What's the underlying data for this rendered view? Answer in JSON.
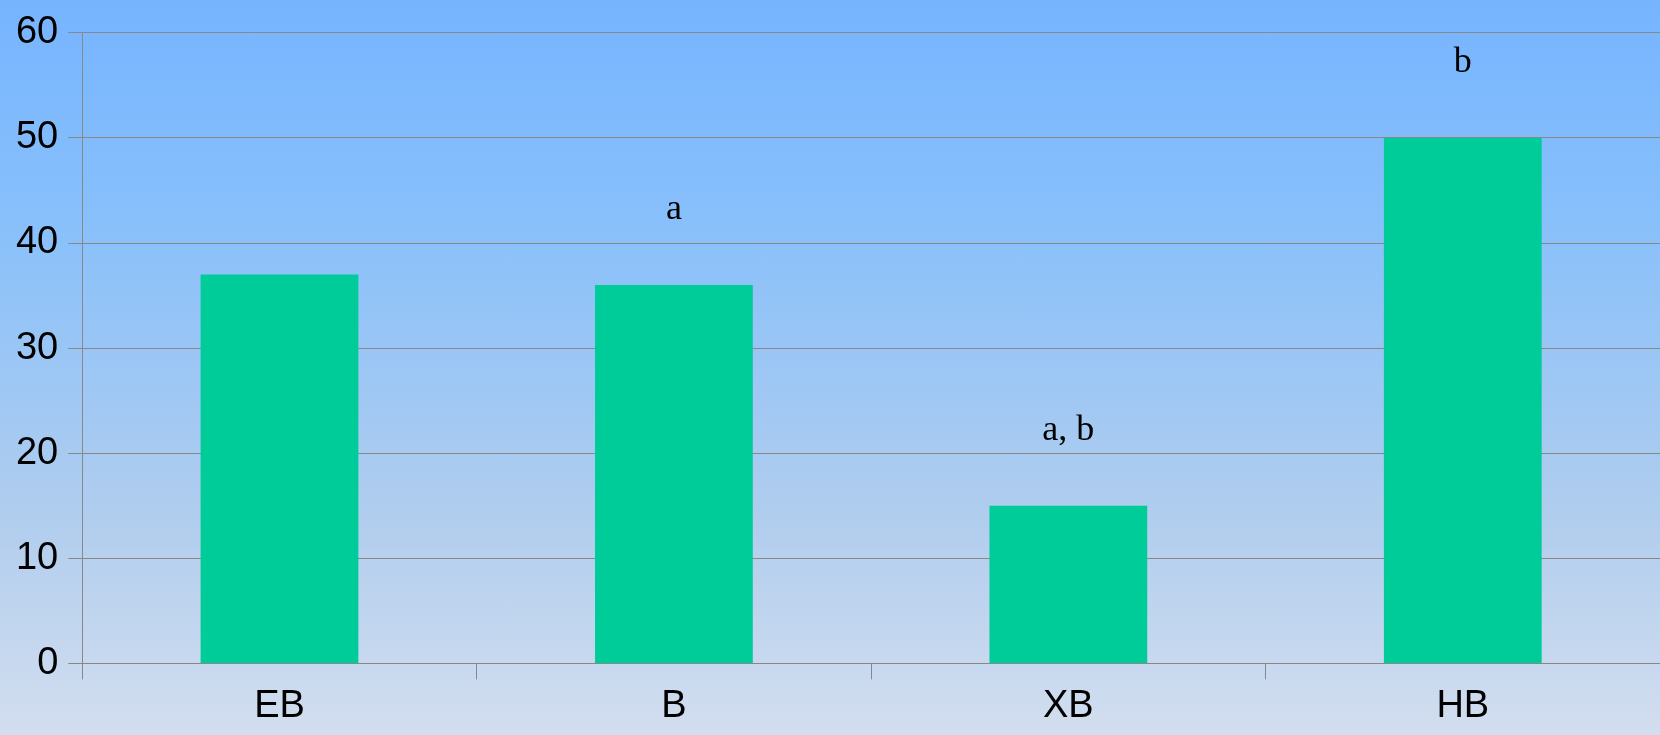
{
  "chart_data": {
    "type": "bar",
    "categories": [
      "EB",
      "B",
      "XB",
      "HB"
    ],
    "values": [
      37,
      36,
      15,
      50
    ],
    "color": "#00cc99",
    "ylim": [
      0,
      60
    ],
    "yticks": [
      0,
      10,
      20,
      30,
      40,
      50,
      60
    ],
    "grid": "y",
    "legend": false,
    "annotations": [
      "a",
      "a, b",
      "b"
    ]
  }
}
